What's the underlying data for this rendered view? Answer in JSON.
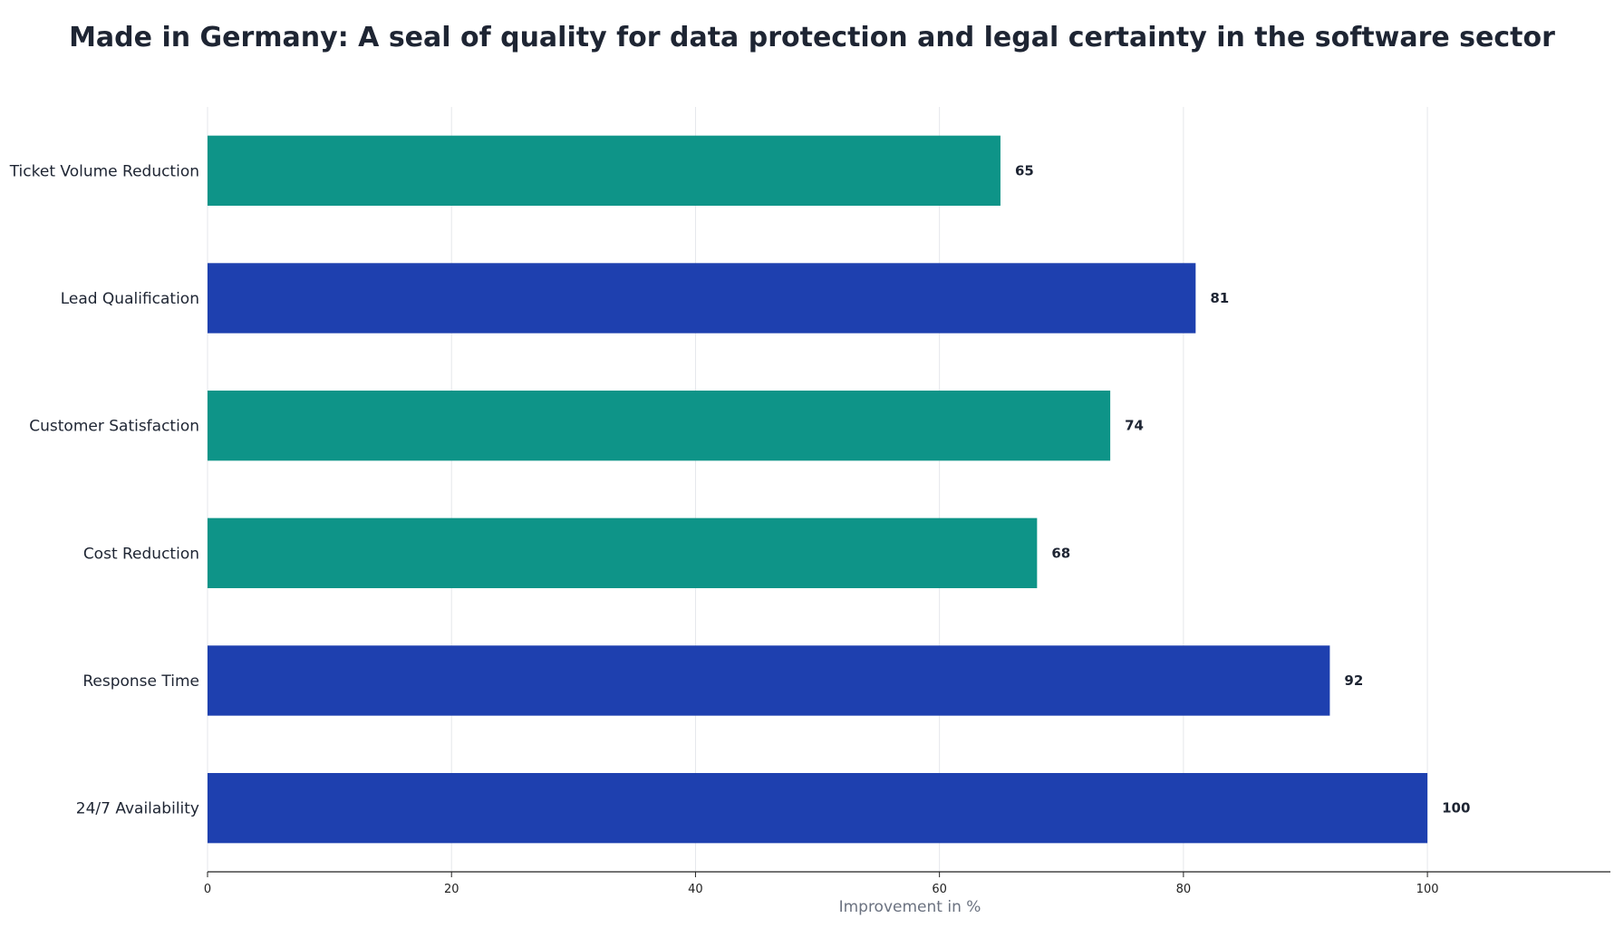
{
  "chart_data": {
    "type": "bar",
    "orientation": "horizontal",
    "title": "Made in Germany: A seal of quality for data protection and legal certainty in the software sector",
    "xlabel": "Improvement in %",
    "ylabel": "",
    "categories": [
      "Ticket Volume Reduction",
      "Lead Qualification",
      "Customer Satisfaction",
      "Cost Reduction",
      "Response Time",
      "24/7 Availability"
    ],
    "values": [
      65,
      81,
      74,
      68,
      92,
      100
    ],
    "value_labels": [
      "65",
      "81",
      "74",
      "68",
      "92",
      "100"
    ],
    "bar_colors": [
      "#0e9488",
      "#1e40af",
      "#0e9488",
      "#0e9488",
      "#1e40af",
      "#1e40af"
    ],
    "xlim": [
      0,
      115
    ],
    "xticks": [
      0,
      20,
      40,
      60,
      80,
      100
    ],
    "xtick_labels": [
      "0",
      "20",
      "40",
      "60",
      "80",
      "100"
    ],
    "grid": "vertical",
    "legend": "none"
  },
  "colors": {
    "teal": "#0e9488",
    "blue": "#1e40af",
    "text": "#1e2533",
    "axis_title": "#6b7280",
    "grid": "#e5e7eb"
  }
}
